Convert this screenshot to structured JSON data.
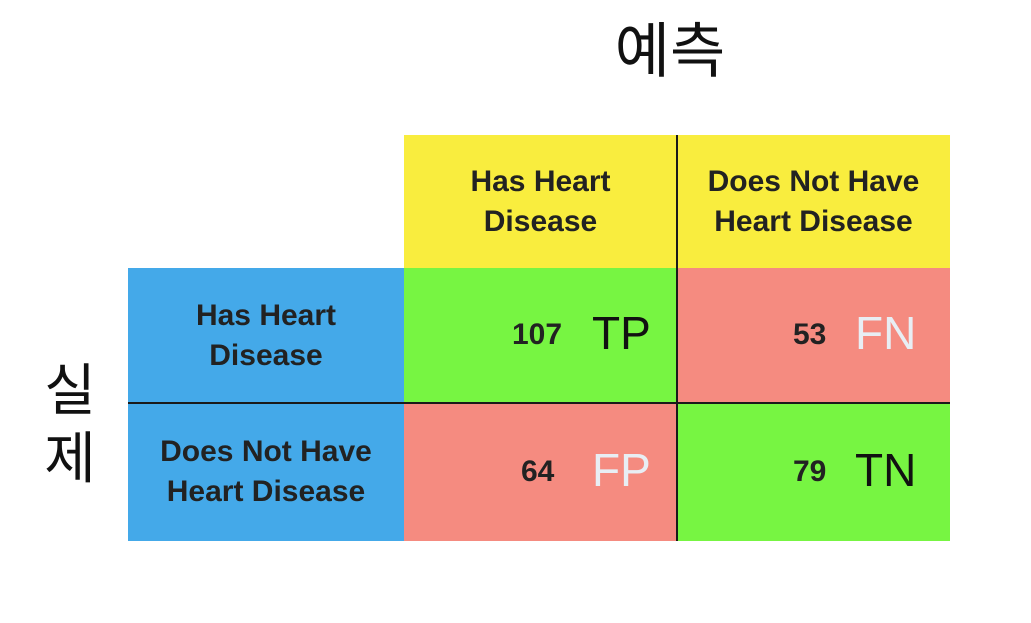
{
  "predicted_label": "예측",
  "actual_label": [
    "실",
    "제"
  ],
  "columns": [
    "Has Heart\nDisease",
    "Does Not Have\nHeart Disease"
  ],
  "rows": [
    "Has Heart\nDisease",
    "Does Not Have\nHeart Disease"
  ],
  "cells": [
    {
      "value": "107",
      "tag": "TP"
    },
    {
      "value": "53",
      "tag": "FN"
    },
    {
      "value": "64",
      "tag": "FP"
    },
    {
      "value": "79",
      "tag": "TN"
    }
  ],
  "colors": {
    "header": "#f9ed3e",
    "row_header": "#44a9e9",
    "correct": "#77f542",
    "incorrect": "#f58b80"
  }
}
